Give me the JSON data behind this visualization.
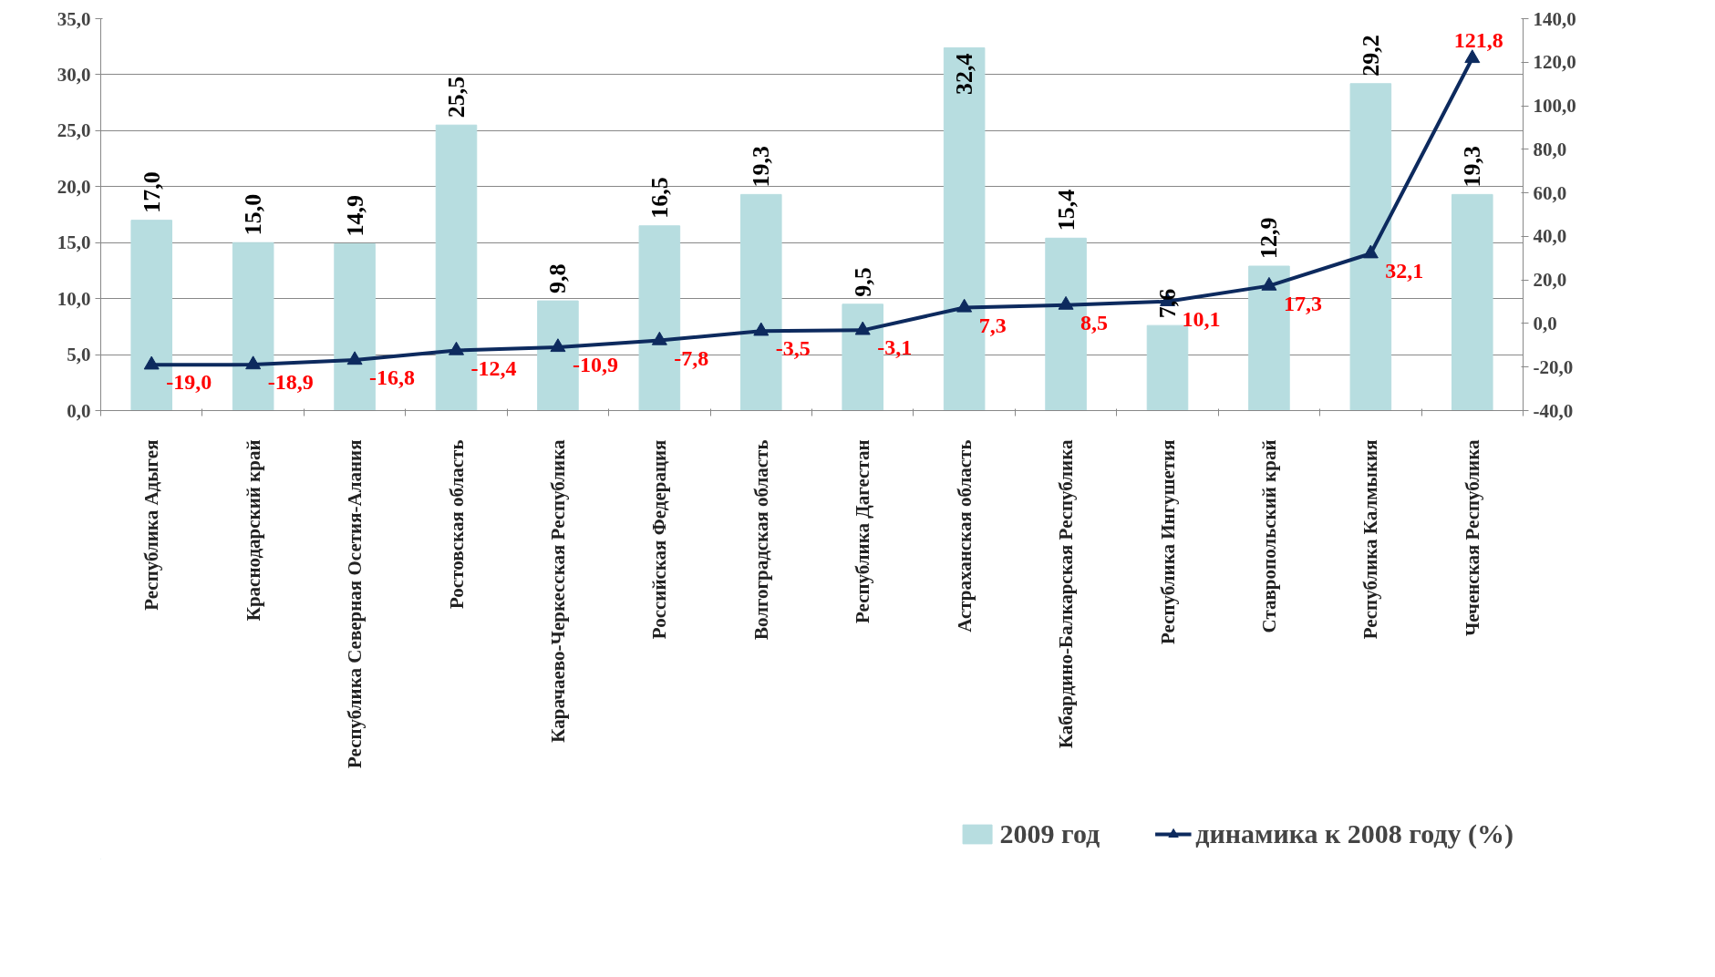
{
  "chart_data": {
    "type": "bar",
    "categories": [
      "Республика Адыгея",
      "Краснодарский край",
      "Республика Северная Осетия-Алания",
      "Ростовская область",
      "Карачаево-Черкесская Республика",
      "Российская Федерация",
      "Волгоградская область",
      "Республика Дагестан",
      "Астраханская область",
      "Кабардино-Балкарская Республика",
      "Республика Ингушетия",
      "Ставропольский край",
      "Республика Калмыкия",
      "Чеченская Республика"
    ],
    "series": [
      {
        "name": "2009 год",
        "type": "bar",
        "color": "#b7dde0",
        "values": [
          17.0,
          15.0,
          14.9,
          25.5,
          9.8,
          16.5,
          19.3,
          9.5,
          32.4,
          15.4,
          7.6,
          12.9,
          29.2,
          19.3
        ],
        "value_labels": [
          "17,0",
          "15,0",
          "14,9",
          "25,5",
          "9,8",
          "16,5",
          "19,3",
          "9,5",
          "32,4",
          "15,4",
          "7,6",
          "12,9",
          "29,2",
          "19,3"
        ]
      },
      {
        "name": "динамика к 2008 году (%)",
        "type": "line",
        "axis": "y2",
        "color": "#0d2a5e",
        "marker": "triangle",
        "values": [
          -19.0,
          -18.9,
          -16.8,
          -12.4,
          -10.9,
          -7.8,
          -3.5,
          -3.1,
          7.3,
          8.5,
          10.1,
          17.3,
          32.1,
          121.8
        ],
        "value_labels": [
          "-19,0",
          "-18,9",
          "-16,8",
          "-12,4",
          "-10,9",
          "-7,8",
          "-3,5",
          "-3,1",
          "7,3",
          "8,5",
          "10,1",
          "17,3",
          "32,1",
          "121,8"
        ]
      }
    ],
    "ylim": [
      0,
      35
    ],
    "yticks": [
      {
        "value": 0,
        "label": "0,0"
      },
      {
        "value": 5,
        "label": "5,0"
      },
      {
        "value": 10,
        "label": "10,0"
      },
      {
        "value": 15,
        "label": "15,0"
      },
      {
        "value": 20,
        "label": "20,0"
      },
      {
        "value": 25,
        "label": "25,0"
      },
      {
        "value": 30,
        "label": "30,0"
      },
      {
        "value": 35,
        "label": "35,0"
      }
    ],
    "y2lim": [
      -40,
      140
    ],
    "y2ticks": [
      {
        "value": -40,
        "label": "-40,0"
      },
      {
        "value": -20,
        "label": "-20,0"
      },
      {
        "value": 0,
        "label": "0,0"
      },
      {
        "value": 20,
        "label": "20,0"
      },
      {
        "value": 40,
        "label": "40,0"
      },
      {
        "value": 60,
        "label": "60,0"
      },
      {
        "value": 80,
        "label": "80,0"
      },
      {
        "value": 100,
        "label": "100,0"
      },
      {
        "value": 120,
        "label": "120,0"
      },
      {
        "value": 140,
        "label": "140,0"
      }
    ],
    "grid": "y",
    "legend": "bottom"
  }
}
